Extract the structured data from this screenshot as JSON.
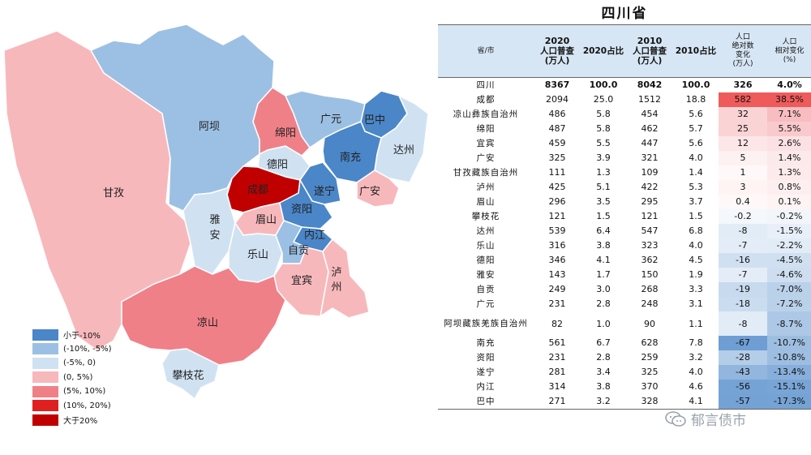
{
  "title": "四川省",
  "legend": [
    {
      "label": "小于-10%",
      "color": "#4a86c8"
    },
    {
      "label": "(-10%, -5%)",
      "color": "#9cc0e4"
    },
    {
      "label": "(-5%, 0)",
      "color": "#d0e2f2"
    },
    {
      "label": "(0, 5%)",
      "color": "#f7b8bc"
    },
    {
      "label": "(5%, 10%)",
      "color": "#f08088"
    },
    {
      "label": "(10%, 20%)",
      "color": "#e02020"
    },
    {
      "label": "大于20%",
      "color": "#c00000"
    }
  ],
  "map_labels": {
    "aba": "阿坝",
    "ganzi": "甘孜",
    "mianyang": "绵阳",
    "guangyuan": "广元",
    "bazhong": "巴中",
    "dazhou": "达州",
    "nanchong": "南充",
    "deyang": "德阳",
    "chengdu": "成都",
    "suining": "遂宁",
    "guangan": "广安",
    "yaan_1": "雅",
    "yaan_2": "安",
    "meishan": "眉山",
    "ziyang": "资阳",
    "neijiang": "内江",
    "leshan": "乐山",
    "zigong": "自贡",
    "luzhou_1": "泸",
    "luzhou_2": "州",
    "yibin": "宜宾",
    "liangshan": "凉山",
    "panzhihua": "攀枝花"
  },
  "table": {
    "headers": {
      "name": "省/市",
      "pop2020_line1": "2020",
      "pop2020_line2": "人口普查",
      "pop2020_line3": "(万人)",
      "share2020": "2020占比",
      "pop2010_line1": "2010",
      "pop2010_line2": "人口普查",
      "pop2010_line3": "(万人)",
      "share2010": "2010占比",
      "abs_line1": "人口",
      "abs_line2": "绝对数",
      "abs_line3": "变化",
      "abs_line4": "(万人)",
      "rel_line1": "人口",
      "rel_line2": "相对变化",
      "rel_line3": "(%)"
    },
    "rows": [
      {
        "name": "四川",
        "pop2020": "8367",
        "share2020": "100.0",
        "pop2010": "8042",
        "share2010": "100.0",
        "abs": "326",
        "rel": "4.0%",
        "rel_value": 4.0
      },
      {
        "name": "成都",
        "pop2020": "2094",
        "share2020": "25.0",
        "pop2010": "1512",
        "share2010": "18.8",
        "abs": "582",
        "rel": "38.5%",
        "rel_value": 38.5
      },
      {
        "name": "凉山彝族自治州",
        "pop2020": "486",
        "share2020": "5.8",
        "pop2010": "454",
        "share2010": "5.6",
        "abs": "32",
        "rel": "7.1%",
        "rel_value": 7.1
      },
      {
        "name": "绵阳",
        "pop2020": "487",
        "share2020": "5.8",
        "pop2010": "462",
        "share2010": "5.7",
        "abs": "25",
        "rel": "5.5%",
        "rel_value": 5.5
      },
      {
        "name": "宜宾",
        "pop2020": "459",
        "share2020": "5.5",
        "pop2010": "447",
        "share2010": "5.6",
        "abs": "12",
        "rel": "2.6%",
        "rel_value": 2.6
      },
      {
        "name": "广安",
        "pop2020": "325",
        "share2020": "3.9",
        "pop2010": "321",
        "share2010": "4.0",
        "abs": "5",
        "rel": "1.4%",
        "rel_value": 1.4
      },
      {
        "name": "甘孜藏族自治州",
        "pop2020": "111",
        "share2020": "1.3",
        "pop2010": "109",
        "share2010": "1.4",
        "abs": "1",
        "rel": "1.3%",
        "rel_value": 1.3
      },
      {
        "name": "泸州",
        "pop2020": "425",
        "share2020": "5.1",
        "pop2010": "422",
        "share2010": "5.3",
        "abs": "3",
        "rel": "0.8%",
        "rel_value": 0.8
      },
      {
        "name": "眉山",
        "pop2020": "296",
        "share2020": "3.5",
        "pop2010": "295",
        "share2010": "3.7",
        "abs": "0.4",
        "rel": "0.1%",
        "rel_value": 0.1
      },
      {
        "name": "攀枝花",
        "pop2020": "121",
        "share2020": "1.5",
        "pop2010": "121",
        "share2010": "1.5",
        "abs": "-0.2",
        "rel": "-0.2%",
        "rel_value": -0.2
      },
      {
        "name": "达州",
        "pop2020": "539",
        "share2020": "6.4",
        "pop2010": "547",
        "share2010": "6.8",
        "abs": "-8",
        "rel": "-1.5%",
        "rel_value": -1.5
      },
      {
        "name": "乐山",
        "pop2020": "316",
        "share2020": "3.8",
        "pop2010": "323",
        "share2010": "4.0",
        "abs": "-7",
        "rel": "-2.2%",
        "rel_value": -2.2
      },
      {
        "name": "德阳",
        "pop2020": "346",
        "share2020": "4.1",
        "pop2010": "362",
        "share2010": "4.5",
        "abs": "-16",
        "rel": "-4.5%",
        "rel_value": -4.5
      },
      {
        "name": "雅安",
        "pop2020": "143",
        "share2020": "1.7",
        "pop2010": "150",
        "share2010": "1.9",
        "abs": "-7",
        "rel": "-4.6%",
        "rel_value": -4.6
      },
      {
        "name": "自贡",
        "pop2020": "249",
        "share2020": "3.0",
        "pop2010": "268",
        "share2010": "3.3",
        "abs": "-19",
        "rel": "-7.0%",
        "rel_value": -7.0
      },
      {
        "name": "广元",
        "pop2020": "231",
        "share2020": "2.8",
        "pop2010": "248",
        "share2010": "3.1",
        "abs": "-18",
        "rel": "-7.2%",
        "rel_value": -7.2
      },
      {
        "name": "阿坝藏族羌族自治州",
        "pop2020": "82",
        "share2020": "1.0",
        "pop2010": "90",
        "share2010": "1.1",
        "abs": "-8",
        "rel": "-8.7%",
        "rel_value": -8.7
      },
      {
        "name": "南充",
        "pop2020": "561",
        "share2020": "6.7",
        "pop2010": "628",
        "share2010": "7.8",
        "abs": "-67",
        "rel": "-10.7%",
        "rel_value": -10.7
      },
      {
        "name": "资阳",
        "pop2020": "231",
        "share2020": "2.8",
        "pop2010": "259",
        "share2010": "3.2",
        "abs": "-28",
        "rel": "-10.8%",
        "rel_value": -10.8
      },
      {
        "name": "遂宁",
        "pop2020": "281",
        "share2020": "3.4",
        "pop2010": "325",
        "share2010": "4.0",
        "abs": "-43",
        "rel": "-13.4%",
        "rel_value": -13.4
      },
      {
        "name": "内江",
        "pop2020": "314",
        "share2020": "3.8",
        "pop2010": "370",
        "share2010": "4.6",
        "abs": "-56",
        "rel": "-15.1%",
        "rel_value": -15.1
      },
      {
        "name": "巴中",
        "pop2020": "271",
        "share2020": "3.2",
        "pop2010": "328",
        "share2010": "4.1",
        "abs": "-57",
        "rel": "-17.3%",
        "rel_value": -17.3
      }
    ]
  },
  "watermark": "郁言债市"
}
